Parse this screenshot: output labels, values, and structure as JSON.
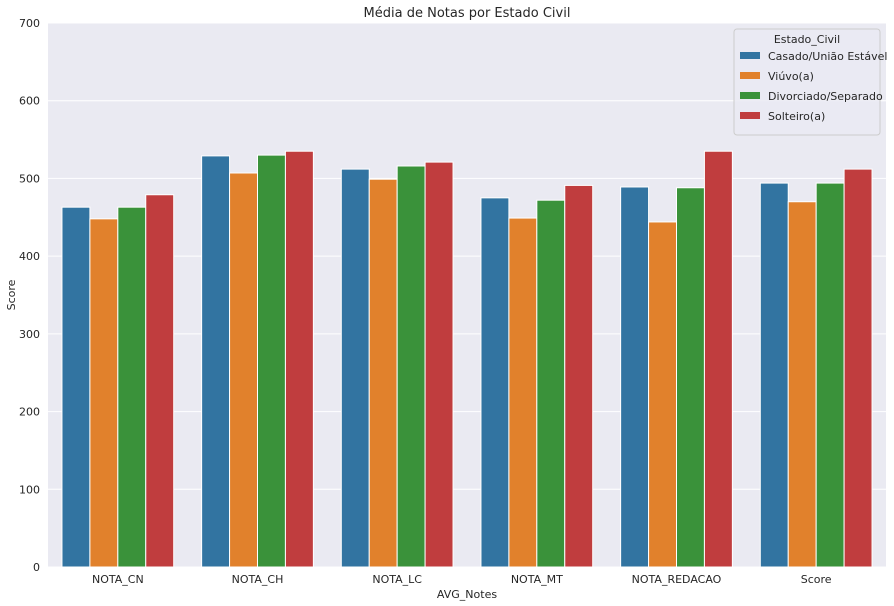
{
  "chart_data": {
    "type": "bar",
    "title": "Média de Notas por Estado Civil",
    "xlabel": "AVG_Notes",
    "ylabel": "Score",
    "ylim": [
      0,
      700
    ],
    "yticks": [
      0,
      100,
      200,
      300,
      400,
      500,
      600,
      700
    ],
    "grid": true,
    "legend_title": "Estado_Civil",
    "legend_position": "top-right",
    "categories": [
      "NOTA_CN",
      "NOTA_CH",
      "NOTA_LC",
      "NOTA_MT",
      "NOTA_REDACAO",
      "Score"
    ],
    "series": [
      {
        "name": "Casado/União Estável",
        "color": "#3274a1",
        "values": [
          463,
          529,
          512,
          475,
          489,
          494
        ]
      },
      {
        "name": "Viúvo(a)",
        "color": "#e1812c",
        "values": [
          448,
          507,
          499,
          449,
          444,
          470
        ]
      },
      {
        "name": "Divorciado/Separado",
        "color": "#3a923a",
        "values": [
          463,
          530,
          516,
          472,
          488,
          494
        ]
      },
      {
        "name": "Solteiro(a)",
        "color": "#c03d3e",
        "values": [
          479,
          535,
          521,
          491,
          535,
          512
        ]
      }
    ],
    "background_color": "#eaeaf2"
  }
}
